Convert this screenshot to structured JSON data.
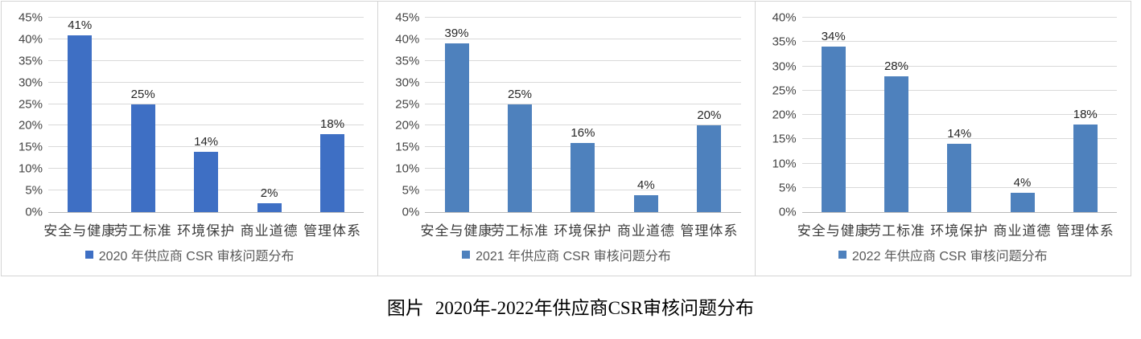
{
  "caption": {
    "prefix": "图片",
    "text": "2020年-2022年供应商CSR审核问题分布"
  },
  "chart_data": [
    {
      "type": "bar",
      "title": "",
      "categories": [
        "安全与健康",
        "劳工标准",
        "环境保护",
        "商业道德",
        "管理体系"
      ],
      "values": [
        41,
        25,
        14,
        2,
        18
      ],
      "value_labels": [
        "41%",
        "25%",
        "14%",
        "2%",
        "18%"
      ],
      "legend": "2020 年供应商 CSR 审核问题分布",
      "xlabel": "",
      "ylabel": "",
      "ylim": [
        0,
        45
      ],
      "ytick_step": 5,
      "ytick_suffix": "%",
      "grid": true,
      "legend_position": "bottom",
      "bar_color": "#3e6fc4"
    },
    {
      "type": "bar",
      "title": "",
      "categories": [
        "安全与健康",
        "劳工标准",
        "环境保护",
        "商业道德",
        "管理体系"
      ],
      "values": [
        39,
        25,
        16,
        4,
        20
      ],
      "value_labels": [
        "39%",
        "25%",
        "16%",
        "4%",
        "20%"
      ],
      "legend": "2021 年供应商 CSR 审核问题分布",
      "xlabel": "",
      "ylabel": "",
      "ylim": [
        0,
        45
      ],
      "ytick_step": 5,
      "ytick_suffix": "%",
      "grid": true,
      "legend_position": "bottom",
      "bar_color": "#4e81bd"
    },
    {
      "type": "bar",
      "title": "",
      "categories": [
        "安全与健康",
        "劳工标准",
        "环境保护",
        "商业道德",
        "管理体系"
      ],
      "values": [
        34,
        28,
        14,
        4,
        18
      ],
      "value_labels": [
        "34%",
        "28%",
        "14%",
        "4%",
        "18%"
      ],
      "legend": "2022 年供应商 CSR 审核问题分布",
      "xlabel": "",
      "ylabel": "",
      "ylim": [
        0,
        40
      ],
      "ytick_step": 5,
      "ytick_suffix": "%",
      "grid": true,
      "legend_position": "bottom",
      "bar_color": "#4e81bd"
    }
  ],
  "colors": {
    "gridline": "#d9d9d9",
    "axis": "#b9b9b9",
    "panel_border": "#d4d4d4",
    "tick_text": "#444444",
    "category_text": "#3d3d3d",
    "legend_text": "#595959"
  }
}
